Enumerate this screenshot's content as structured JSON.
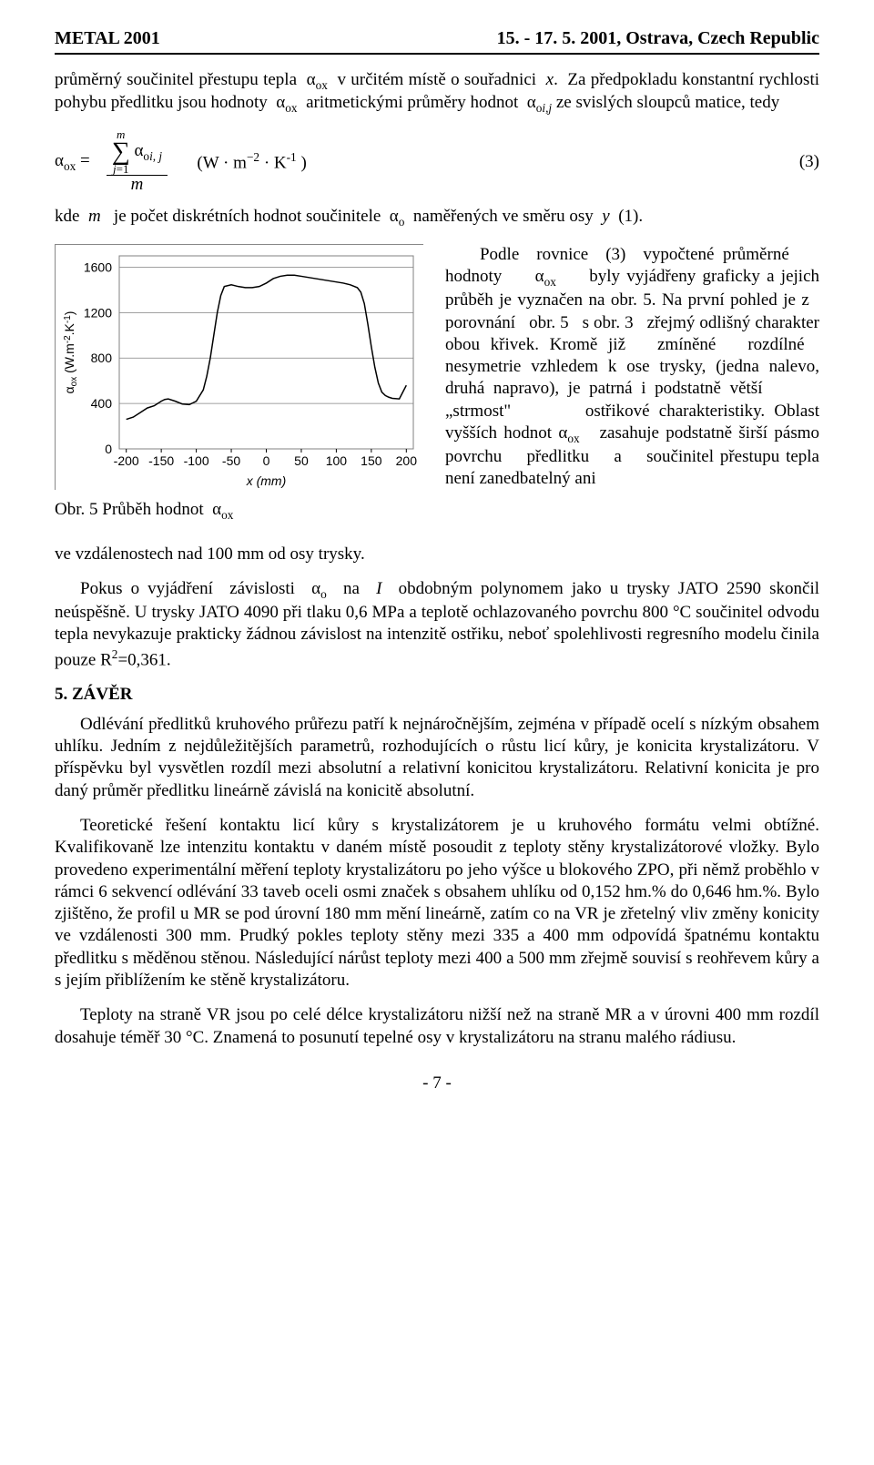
{
  "header": {
    "left": "METAL 2001",
    "right": "15. - 17. 5. 2001, Ostrava, Czech Republic"
  },
  "p1": "průměrný součinitel přestupu tepla  α_ox  v určitém místě o souřadnici  x.  Za předpokladu konstantní rychlosti pohybu předlitku jsou hodnoty  α_ox  aritmetickými průměry hodnot  α_{oi,j} ze svislých sloupců matice, tedy",
  "eq3": {
    "text": "α_ox =  ( Σ_{j=1}^{m} α_{oi,j} ) / m     (W · m⁻² · K⁻¹ )",
    "num": "(3)"
  },
  "kde": "kde  m   je počet diskrétních hodnot součinitele  α_o  naměřených ve směru osy  y  (1).",
  "chart": {
    "type": "line",
    "title": null,
    "xlabel": "x  (mm)",
    "ylabel": "α_ox  (W.m⁻².K⁻¹)",
    "xticks": [
      -200,
      -150,
      -100,
      -50,
      0,
      50,
      100,
      150,
      200
    ],
    "yticks": [
      0,
      400,
      800,
      1200,
      1600
    ],
    "xlim": [
      -210,
      210
    ],
    "ylim": [
      0,
      1700
    ],
    "series_color": "#000000",
    "grid_color": "#808080",
    "background_color": "#ffffff",
    "border_color": "#888888",
    "tick_fontsize": 14,
    "label_fontsize": 14,
    "line_width": 1.5,
    "points": [
      [
        -200,
        260
      ],
      [
        -190,
        280
      ],
      [
        -180,
        320
      ],
      [
        -170,
        360
      ],
      [
        -160,
        380
      ],
      [
        -155,
        400
      ],
      [
        -150,
        420
      ],
      [
        -145,
        435
      ],
      [
        -140,
        440
      ],
      [
        -130,
        420
      ],
      [
        -120,
        395
      ],
      [
        -110,
        390
      ],
      [
        -100,
        420
      ],
      [
        -90,
        520
      ],
      [
        -85,
        640
      ],
      [
        -80,
        800
      ],
      [
        -75,
        1000
      ],
      [
        -70,
        1200
      ],
      [
        -65,
        1350
      ],
      [
        -60,
        1430
      ],
      [
        -50,
        1445
      ],
      [
        -40,
        1430
      ],
      [
        -30,
        1420
      ],
      [
        -20,
        1420
      ],
      [
        -10,
        1430
      ],
      [
        0,
        1460
      ],
      [
        10,
        1500
      ],
      [
        20,
        1520
      ],
      [
        30,
        1530
      ],
      [
        40,
        1530
      ],
      [
        50,
        1520
      ],
      [
        60,
        1510
      ],
      [
        70,
        1500
      ],
      [
        80,
        1490
      ],
      [
        90,
        1480
      ],
      [
        100,
        1470
      ],
      [
        110,
        1460
      ],
      [
        120,
        1445
      ],
      [
        130,
        1420
      ],
      [
        135,
        1380
      ],
      [
        140,
        1280
      ],
      [
        145,
        1100
      ],
      [
        150,
        900
      ],
      [
        155,
        720
      ],
      [
        160,
        580
      ],
      [
        165,
        500
      ],
      [
        170,
        470
      ],
      [
        175,
        455
      ],
      [
        180,
        445
      ],
      [
        190,
        440
      ],
      [
        195,
        500
      ],
      [
        200,
        560
      ]
    ]
  },
  "fig_caption": "Obr. 5 Průběh hodnot  α_ox",
  "p_right": "     Podle  rovnice  (3)  vypočtené průměrné     hodnoty     α_ox     byly vyjádřeny graficky a jejich průběh je vyznačen na obr. 5. Na první pohled je z   porovnání   obr. 5   s obr. 3   zřejmý odlišný  charakter  obou  křivek.  Kromě již   zmíněné   rozdílné   nesymetrie vzhledem k ose trysky, (jedna nalevo, druhá  napravo),  je  patrná  i  podstatně větší         „strmost\"         ostřikové charakteristiky. Oblast vyšších hodnot α_ox   zasahuje  podstatně  širší  pásmo povrchu    předlitku    a    součinitel přestupu tepla není zanedbatelný ani",
  "p_below": "ve vzdálenostech nad 100 mm od osy trysky.",
  "p2": "Pokus o vyjádření  závislosti  α_o  na  I  obdobným polynomem jako  u trysky  JATO 2590 skončil neúspěšně.  U trysky JATO 4090 při tlaku 0,6 MPa a teplotě ochlazovaného povrchu 800 °C součinitel odvodu tepla nevykazuje prakticky žádnou závislost na intenzitě ostřiku, neboť spolehlivosti regresního modelu činila pouze R²=0,361.",
  "sec5_head": "5. ZÁVĚR",
  "p3": "Odlévání  předlitků  kruhového  průřezu  patří  k  nejnáročnějším,  zejména v případě ocelí s nízkým  obsahem  uhlíku.  Jedním  z nejdůležitějších  parametrů,  rozhodujících  o  růstu  licí kůry, je konicita krystalizátoru.  V příspěvku byl vysvětlen rozdíl mezi absolutní a relativní konicitou krystalizátoru.  Relativní konicita je pro daný průměr předlitku lineárně závislá na konicitě absolutní.",
  "p4": "Teoretické  řešení  kontaktu  licí  kůry  s krystalizátorem  je  u  kruhového  formátu  velmi obtížné.  Kvalifikovaně  lze  intenzitu  kontaktu  v daném  místě   posoudit  z teploty  stěny krystalizátorové vložky. Bylo provedeno experimentální měření teploty krystalizátoru po jeho výšce u blokového ZPO, při němž proběhlo v rámci 6 sekvencí odlévání 33 taveb oceli osmi značek  s obsahem  uhlíku  od  0,152 hm.%  do  0,646 hm.%.  Bylo  zjištěno,  že profil  u  MR  se pod  úrovní  180 mm  mění  lineárně,  zatím  co  na  VR  je  zřetelný  vliv  změny  konicity  ve vzdálenosti 300 mm. Prudký pokles teploty stěny mezi 335 a 400 mm odpovídá špatnému kontaktu předlitku s měděnou stěnou.  Následující nárůst teploty mezi 400 a 500 mm zřejmě souvisí s reohřevem kůry a s jejím přiblížením ke stěně krystalizátoru.",
  "p5": "Teploty  na  straně  VR  jsou  po  celé  délce  krystalizátoru  nižší  než  na  straně  MR  a v úrovni  400 mm  rozdíl  dosahuje  téměř  30 °C.   Znamená  to  posunutí  tepelné  osy v krystalizátoru na stranu malého rádiusu.",
  "page_num": "- 7 -"
}
